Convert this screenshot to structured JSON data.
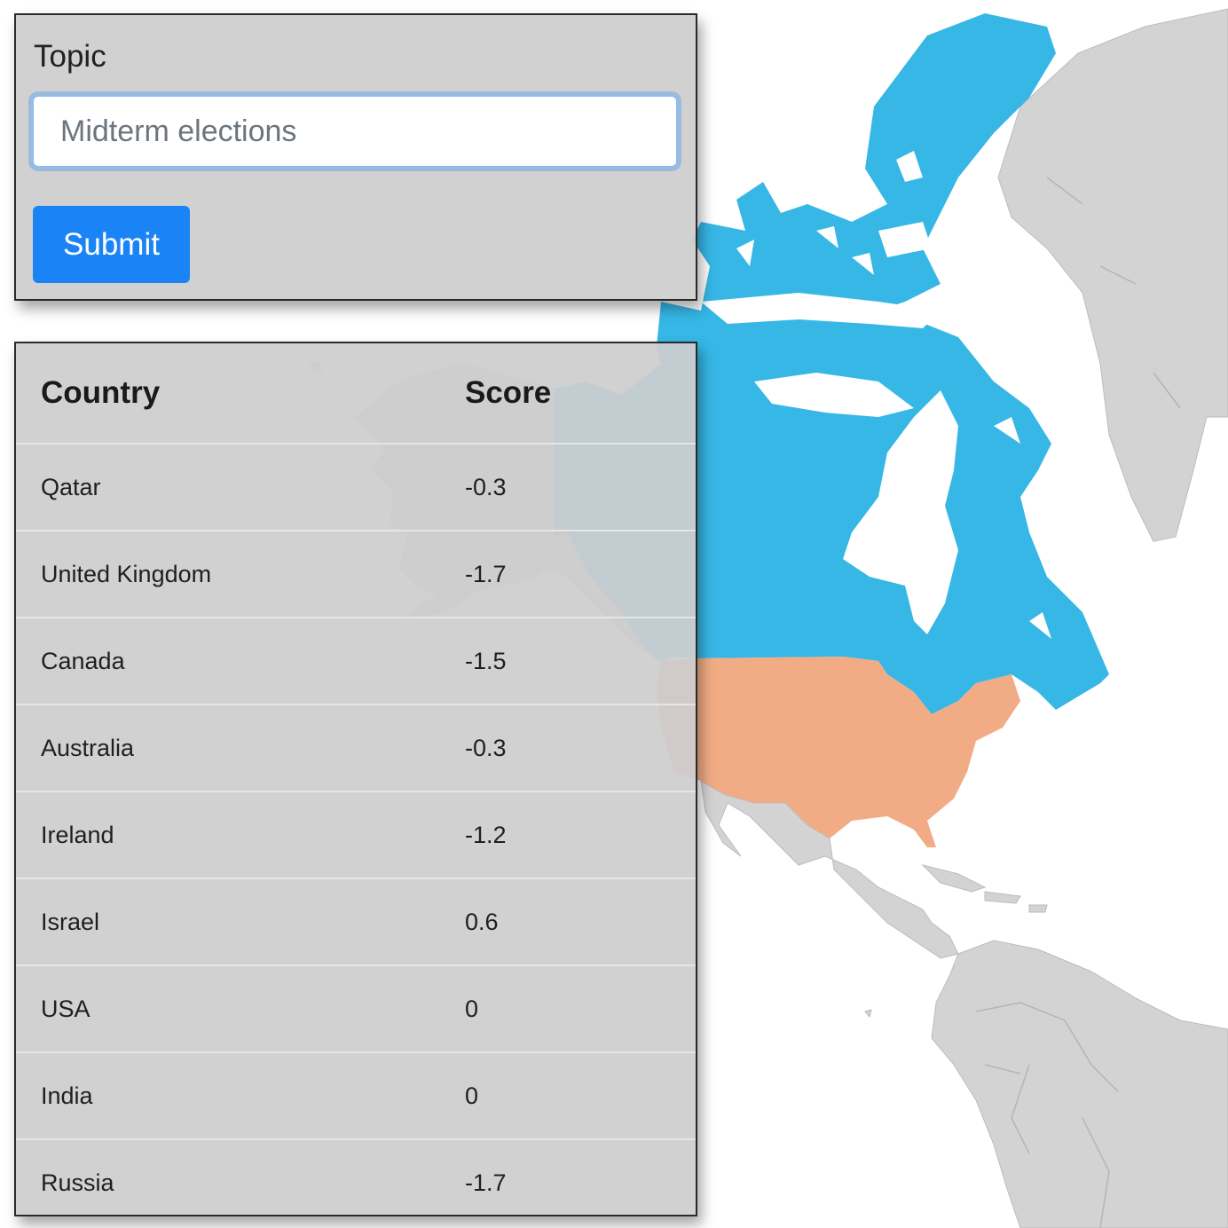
{
  "form": {
    "topic_label": "Topic",
    "topic_placeholder": "Midterm elections",
    "submit_label": "Submit"
  },
  "table": {
    "headers": [
      "Country",
      "Score"
    ],
    "rows": [
      {
        "country": "Qatar",
        "score": "-0.3"
      },
      {
        "country": "United Kingdom",
        "score": "-1.7"
      },
      {
        "country": "Canada",
        "score": "-1.5"
      },
      {
        "country": "Australia",
        "score": "-0.3"
      },
      {
        "country": "Ireland",
        "score": "-1.2"
      },
      {
        "country": "Israel",
        "score": "0.6"
      },
      {
        "country": "USA",
        "score": "0"
      },
      {
        "country": "India",
        "score": "0"
      },
      {
        "country": "Russia",
        "score": "-1.7"
      }
    ]
  },
  "map": {
    "colors": {
      "canada": "#36b7e6",
      "usa": "#f2ac85",
      "default_land": "#d3d3d3",
      "water": "#ffffff"
    }
  }
}
